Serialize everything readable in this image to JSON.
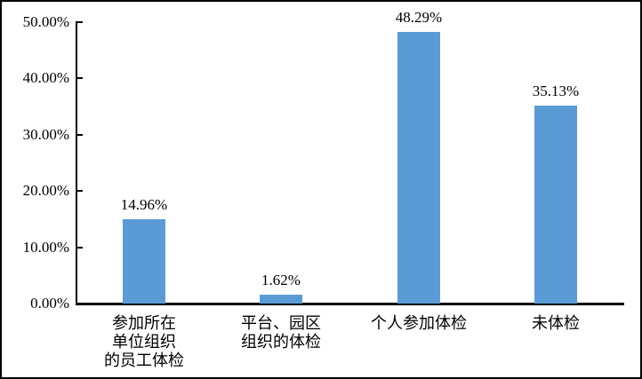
{
  "chart_data": {
    "type": "bar",
    "title": "",
    "xlabel": "",
    "ylabel": "",
    "categories": [
      "参加所在单位组织的员工体检",
      "平台、园区组织的体检",
      "个人参加体检",
      "未体检"
    ],
    "category_lines": [
      [
        "参加所在",
        "单位组织",
        "的员工体检"
      ],
      [
        "平台、园区",
        "组织的体检"
      ],
      [
        "个人参加体检"
      ],
      [
        "未体检"
      ]
    ],
    "values": [
      14.96,
      1.62,
      48.29,
      35.13
    ],
    "value_labels": [
      "14.96%",
      "1.62%",
      "48.29%",
      "35.13%"
    ],
    "ylim": [
      0,
      50
    ],
    "ytick_step": 10,
    "ytick_labels": [
      "0.00%",
      "10.00%",
      "20.00%",
      "30.00%",
      "40.00%",
      "50.00%"
    ],
    "grid": false,
    "legend": false,
    "bar_color": "#5B9BD5",
    "axis_color": "#000000",
    "background_color": "#FFFFFF",
    "frame_border_color": "#000000"
  }
}
